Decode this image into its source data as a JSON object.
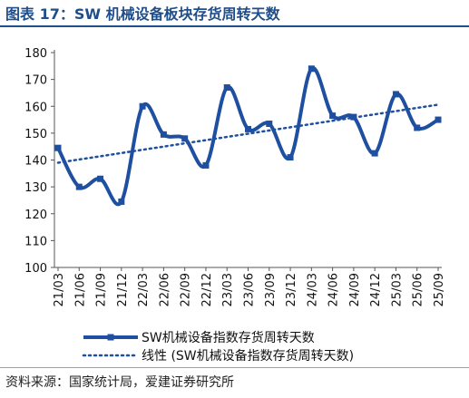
{
  "figure": {
    "title": "图表 17：SW 机械设备板块存货周转天数",
    "source": "资料来源：国家统计局，爱建证券研究所"
  },
  "colors": {
    "title": "#1f4e8c",
    "series": "#1f4fa0",
    "trend": "#1f4fa0"
  },
  "chart_data": {
    "type": "line",
    "title": "",
    "xlabel": "",
    "ylabel": "",
    "ylim": [
      100,
      180
    ],
    "yticks": [
      100,
      110,
      120,
      130,
      140,
      150,
      160,
      170,
      180
    ],
    "x": [
      "21/03",
      "21/06",
      "21/09",
      "21/12",
      "22/03",
      "22/06",
      "22/09",
      "22/12",
      "23/03",
      "23/06",
      "23/09",
      "23/12",
      "24/03",
      "24/06",
      "24/09",
      "24/12",
      "25/03",
      "25/06",
      "25/09"
    ],
    "grid": false,
    "legend": "bottom",
    "series": [
      {
        "name": "SW机械设备指数存货周转天数",
        "style": "solid-with-square-markers",
        "values": [
          144.5,
          130,
          133,
          124.5,
          160,
          149.5,
          148,
          138,
          167,
          151.5,
          153.5,
          141,
          174,
          156.5,
          156,
          142.5,
          164.5,
          152,
          155
        ]
      },
      {
        "name": "线性 (SW机械设备指数存货周转天数)",
        "style": "dotted-trendline",
        "values": [
          139,
          140.2,
          141.4,
          142.6,
          143.8,
          145,
          146.2,
          147.4,
          148.6,
          149.8,
          151,
          152.2,
          153.4,
          154.6,
          155.8,
          157,
          158.2,
          159.4,
          160.6
        ]
      }
    ]
  }
}
